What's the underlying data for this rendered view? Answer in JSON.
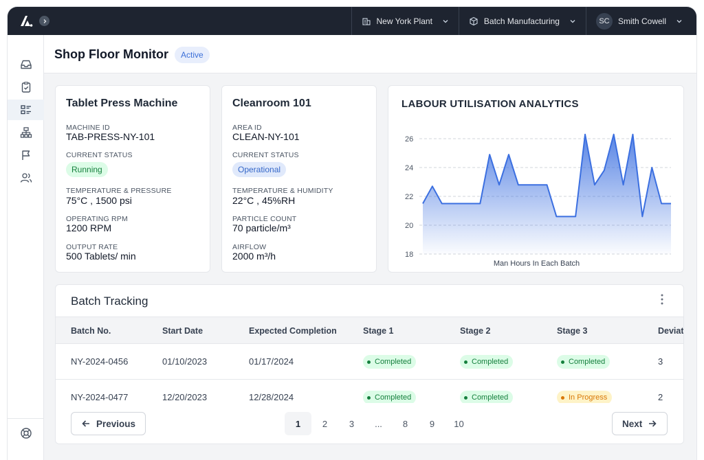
{
  "topbar": {
    "plant": "New York Plant",
    "process": "Batch Manufacturing",
    "user_initials": "SC",
    "user_name": "Smith Cowell"
  },
  "header": {
    "title": "Shop Floor Monitor",
    "status": "Active"
  },
  "machine_card": {
    "title": "Tablet Press Machine",
    "fields": [
      {
        "label": "MACHINE ID",
        "value": "TAB-PRESS-NY-101"
      },
      {
        "label": "CURRENT STATUS",
        "value": "Running"
      },
      {
        "label": "TEMPERATURE & PRESSURE",
        "value": "75°C ,  1500 psi"
      },
      {
        "label": "OPERATING RPM",
        "value": "1200 RPM"
      },
      {
        "label": "OUTPUT RATE",
        "value": "500 Tablets/ min"
      }
    ]
  },
  "room_card": {
    "title": "Cleanroom 101",
    "fields": [
      {
        "label": "AREA ID",
        "value": "CLEAN-NY-101"
      },
      {
        "label": "CURRENT STATUS",
        "value": "Operational"
      },
      {
        "label": "TEMPERATURE & HUMIDITY",
        "value": "22°C ,  45%RH"
      },
      {
        "label": "PARTICLE COUNT",
        "value": "70 particle/m³"
      },
      {
        "label": "AIRFLOW",
        "value": "2000 m³/h"
      }
    ]
  },
  "chart_data": {
    "type": "area",
    "title": "LABOUR UTILISATION ANALYTICS",
    "xlabel": "Man Hours In Each Batch",
    "ylabel": "",
    "ylim": [
      18,
      26
    ],
    "yticks": [
      18,
      20,
      22,
      24,
      26
    ],
    "grid": true,
    "color": "#3b6fe0",
    "values": [
      21.5,
      22.7,
      21.5,
      21.5,
      21.5,
      21.5,
      21.5,
      24.9,
      22.8,
      24.9,
      22.8,
      22.8,
      22.8,
      22.8,
      20.6,
      20.6,
      20.6,
      26.3,
      22.8,
      23.8,
      26.3,
      22.8,
      26.3,
      20.6,
      24.0,
      21.5,
      21.5
    ]
  },
  "table": {
    "title": "Batch Tracking",
    "columns": [
      "Batch No.",
      "Start Date",
      "Expected Completion",
      "Stage 1",
      "Stage 2",
      "Stage 3",
      "Deviat"
    ],
    "rows": [
      {
        "batch": "NY-2024-0456",
        "start": "01/10/2023",
        "expected": "01/17/2024",
        "s1": "Completed",
        "s2": "Completed",
        "s3": "Completed",
        "dev": "3"
      },
      {
        "batch": "NY-2024-0477",
        "start": "12/20/2023",
        "expected": "12/28/2024",
        "s1": "Completed",
        "s2": "Completed",
        "s3": "In Progress",
        "dev": "2"
      }
    ]
  },
  "pagination": {
    "prev_label": "Previous",
    "next_label": "Next",
    "pages": [
      "1",
      "2",
      "3",
      "...",
      "8",
      "9",
      "10"
    ],
    "current": "1"
  },
  "sidebar": {
    "icons": [
      "inbox-icon",
      "clipboard-check-icon",
      "monitor-list-icon",
      "hierarchy-icon",
      "flag-icon",
      "users-icon"
    ],
    "bottom_icon": "support-icon"
  }
}
